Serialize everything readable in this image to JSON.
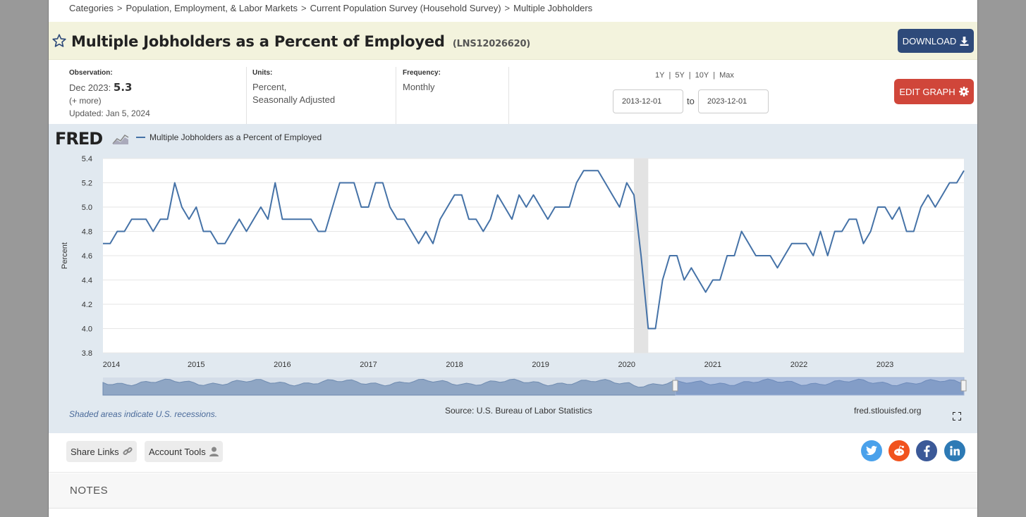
{
  "breadcrumb": [
    "Categories",
    "Population, Employment, & Labor Markets",
    "Current Population Survey (Household Survey)",
    "Multiple Jobholders"
  ],
  "title": "Multiple Jobholders as a Percent of Employed",
  "series_id": "(LNS12026620)",
  "download_label": "DOWNLOAD",
  "observation": {
    "label": "Observation:",
    "date": "Dec 2023:",
    "value": "5.3",
    "more": "(+ more)",
    "updated": "Updated: Jan 5, 2024"
  },
  "units": {
    "label": "Units:",
    "line1": "Percent,",
    "line2": "Seasonally Adjusted"
  },
  "frequency": {
    "label": "Frequency:",
    "value": "Monthly"
  },
  "ranges": [
    "1Y",
    "5Y",
    "10Y",
    "Max"
  ],
  "range_separator": "|",
  "date_from": "2013-12-01",
  "date_to": "2023-12-01",
  "to_label": "to",
  "edit_label": "EDIT GRAPH",
  "fred_logo": "FRED",
  "recession_note": "Shaded areas indicate U.S. recessions.",
  "source": "Source: U.S. Bureau of Labor Statistics",
  "fred_url": "fred.stlouisfed.org",
  "share_links": "Share Links",
  "account_tools": "Account Tools",
  "notes_title": "NOTES",
  "colors": {
    "line": "#4572a7",
    "download": "#2e4a7a",
    "edit": "#d0463a",
    "twitter": "#4aa1eb",
    "reddit": "#f1531e",
    "facebook": "#3b5998",
    "linkedin": "#2d7ab5"
  },
  "chart_data": {
    "type": "line",
    "ylabel": "Percent",
    "ylim": [
      3.8,
      5.4
    ],
    "yticks": [
      "3.8",
      "4.0",
      "4.2",
      "4.4",
      "4.6",
      "4.8",
      "5.0",
      "5.2",
      "5.4"
    ],
    "xticks": [
      "2014",
      "2015",
      "2016",
      "2017",
      "2018",
      "2019",
      "2020",
      "2021",
      "2022",
      "2023"
    ],
    "x_start": "2013-12",
    "x_end": "2023-12",
    "recession": [
      "2020-02",
      "2020-04"
    ],
    "series": [
      {
        "name": "Multiple Jobholders as a Percent of Employed",
        "values": [
          4.7,
          4.7,
          4.8,
          4.8,
          4.9,
          4.9,
          4.9,
          4.8,
          4.9,
          4.9,
          5.2,
          5.0,
          4.9,
          5.0,
          4.8,
          4.8,
          4.7,
          4.7,
          4.8,
          4.9,
          4.8,
          4.9,
          5.0,
          4.9,
          5.2,
          4.9,
          4.9,
          4.9,
          4.9,
          4.9,
          4.8,
          4.8,
          5.0,
          5.2,
          5.2,
          5.2,
          5.0,
          5.0,
          5.2,
          5.2,
          5.0,
          4.9,
          4.9,
          4.8,
          4.7,
          4.8,
          4.7,
          4.9,
          5.0,
          5.1,
          5.1,
          4.9,
          4.9,
          4.8,
          4.9,
          5.1,
          5.0,
          4.9,
          5.1,
          5.0,
          5.1,
          5.0,
          4.9,
          5.0,
          5.0,
          5.0,
          5.2,
          5.3,
          5.3,
          5.3,
          5.2,
          5.1,
          5.0,
          5.2,
          5.1,
          4.6,
          4.0,
          4.0,
          4.4,
          4.6,
          4.6,
          4.4,
          4.5,
          4.4,
          4.3,
          4.4,
          4.4,
          4.6,
          4.6,
          4.8,
          4.7,
          4.6,
          4.6,
          4.6,
          4.5,
          4.6,
          4.7,
          4.7,
          4.7,
          4.6,
          4.8,
          4.6,
          4.8,
          4.8,
          4.9,
          4.9,
          4.7,
          4.8,
          5.0,
          5.0,
          4.9,
          5.0,
          4.8,
          4.8,
          5.0,
          5.1,
          5.0,
          5.1,
          5.2,
          5.2,
          5.3
        ]
      }
    ]
  }
}
